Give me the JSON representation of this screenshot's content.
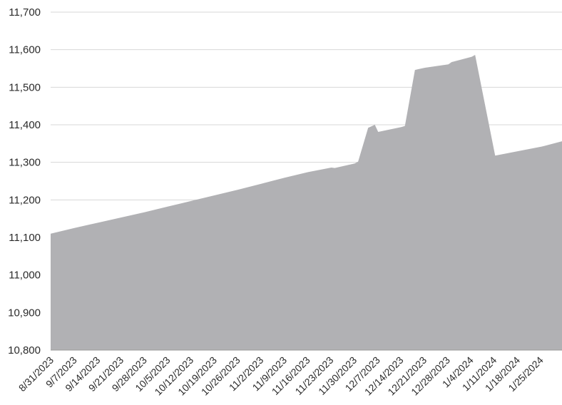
{
  "colors": {
    "area": "#b1b1b4",
    "grid": "#d7d7d7",
    "axis": "#9a9a9a",
    "text": "#2b2b2b"
  },
  "chart_data": {
    "type": "area",
    "title": "",
    "xlabel": "",
    "ylabel": "",
    "ylim": [
      10800,
      11700
    ],
    "yticks": [
      10800,
      10900,
      11000,
      11100,
      11200,
      11300,
      11400,
      11500,
      11600,
      11700
    ],
    "ytick_labels": [
      "10,800",
      "10,900",
      "11,000",
      "11,100",
      "11,200",
      "11,300",
      "11,400",
      "11,500",
      "11,600",
      "11,700"
    ],
    "xlim": [
      "2023-08-31",
      "2024-01-31"
    ],
    "xtick_labels": [
      "8/31/2023",
      "9/7/2023",
      "9/14/2023",
      "9/21/2023",
      "9/28/2023",
      "10/5/2023",
      "10/12/2023",
      "10/19/2023",
      "10/26/2023",
      "11/2/2023",
      "11/9/2023",
      "11/16/2023",
      "11/23/2023",
      "11/30/2023",
      "12/7/2023",
      "12/14/2023",
      "12/21/2023",
      "12/28/2023",
      "1/4/2024",
      "1/11/2024",
      "1/18/2024",
      "1/25/2024"
    ],
    "grid": true,
    "legend": "none",
    "series": [
      {
        "x": [
          "2023-08-31",
          "2023-09-01",
          "2023-09-07",
          "2023-09-14",
          "2023-09-21",
          "2023-09-28",
          "2023-10-05",
          "2023-10-12",
          "2023-10-19",
          "2023-10-26",
          "2023-11-02",
          "2023-11-09",
          "2023-11-16",
          "2023-11-23",
          "2023-11-24",
          "2023-11-30",
          "2023-12-01",
          "2023-12-04",
          "2023-12-05",
          "2023-12-06",
          "2023-12-07",
          "2023-12-14",
          "2023-12-15",
          "2023-12-18",
          "2023-12-19",
          "2023-12-21",
          "2023-12-28",
          "2023-12-29",
          "2024-01-04",
          "2024-01-05",
          "2024-01-11",
          "2024-01-18",
          "2024-01-25",
          "2024-01-31"
        ],
        "y": [
          11110,
          11112,
          11125,
          11139,
          11153,
          11167,
          11182,
          11197,
          11212,
          11227,
          11243,
          11259,
          11274,
          11286,
          11285,
          11297,
          11302,
          11392,
          11396,
          11400,
          11381,
          11394,
          11397,
          11546,
          11548,
          11552,
          11561,
          11567,
          11581,
          11586,
          11318,
          11330,
          11342,
          11356
        ]
      }
    ]
  }
}
